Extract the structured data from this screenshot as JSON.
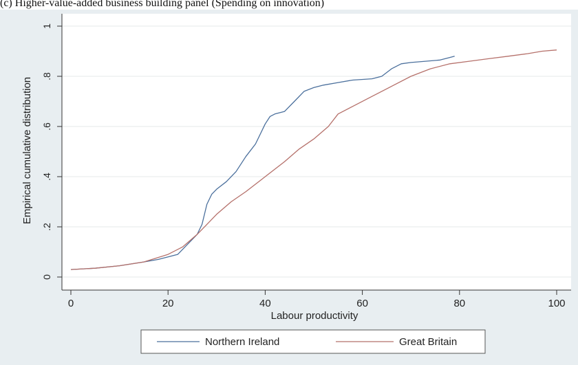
{
  "caption": "(c) Higher-value-added business building panel (Spending on innovation)",
  "chart_data": {
    "type": "line",
    "title": "",
    "xlabel": "Labour productivity",
    "ylabel": "Empirical cumulative distribution",
    "xlim": [
      0,
      100
    ],
    "ylim": [
      0,
      1
    ],
    "x_ticks": [
      0,
      20,
      40,
      60,
      80,
      100
    ],
    "x_tick_labels": [
      "0",
      "20",
      "40",
      "60",
      "80",
      "100"
    ],
    "y_ticks": [
      0,
      0.2,
      0.4,
      0.6,
      0.8,
      1
    ],
    "y_tick_labels": [
      "0",
      ".2",
      ".4",
      ".6",
      ".8",
      "1"
    ],
    "grid": true,
    "legend_position": "bottom",
    "series": [
      {
        "name": "Northern Ireland",
        "color": "#4a6f9c",
        "points": [
          [
            0,
            0.03
          ],
          [
            5,
            0.035
          ],
          [
            10,
            0.045
          ],
          [
            15,
            0.06
          ],
          [
            18,
            0.07
          ],
          [
            20,
            0.08
          ],
          [
            22,
            0.09
          ],
          [
            24,
            0.13
          ],
          [
            26,
            0.17
          ],
          [
            27,
            0.21
          ],
          [
            28,
            0.29
          ],
          [
            29,
            0.33
          ],
          [
            30,
            0.35
          ],
          [
            32,
            0.38
          ],
          [
            34,
            0.42
          ],
          [
            36,
            0.48
          ],
          [
            38,
            0.53
          ],
          [
            39,
            0.57
          ],
          [
            40,
            0.61
          ],
          [
            41,
            0.64
          ],
          [
            42,
            0.65
          ],
          [
            44,
            0.66
          ],
          [
            46,
            0.7
          ],
          [
            48,
            0.74
          ],
          [
            50,
            0.755
          ],
          [
            52,
            0.765
          ],
          [
            55,
            0.775
          ],
          [
            58,
            0.785
          ],
          [
            62,
            0.79
          ],
          [
            64,
            0.8
          ],
          [
            66,
            0.83
          ],
          [
            68,
            0.85
          ],
          [
            70,
            0.855
          ],
          [
            73,
            0.86
          ],
          [
            76,
            0.865
          ],
          [
            78,
            0.875
          ],
          [
            79,
            0.88
          ]
        ]
      },
      {
        "name": "Great Britain",
        "color": "#b5706a",
        "points": [
          [
            0,
            0.03
          ],
          [
            5,
            0.035
          ],
          [
            10,
            0.045
          ],
          [
            15,
            0.06
          ],
          [
            20,
            0.09
          ],
          [
            23,
            0.12
          ],
          [
            26,
            0.17
          ],
          [
            28,
            0.21
          ],
          [
            30,
            0.25
          ],
          [
            33,
            0.3
          ],
          [
            36,
            0.34
          ],
          [
            40,
            0.4
          ],
          [
            44,
            0.46
          ],
          [
            47,
            0.51
          ],
          [
            50,
            0.55
          ],
          [
            53,
            0.6
          ],
          [
            55,
            0.65
          ],
          [
            58,
            0.68
          ],
          [
            62,
            0.72
          ],
          [
            66,
            0.76
          ],
          [
            70,
            0.8
          ],
          [
            74,
            0.83
          ],
          [
            78,
            0.85
          ],
          [
            82,
            0.86
          ],
          [
            86,
            0.87
          ],
          [
            90,
            0.88
          ],
          [
            94,
            0.89
          ],
          [
            97,
            0.9
          ],
          [
            100,
            0.905
          ]
        ]
      }
    ]
  }
}
